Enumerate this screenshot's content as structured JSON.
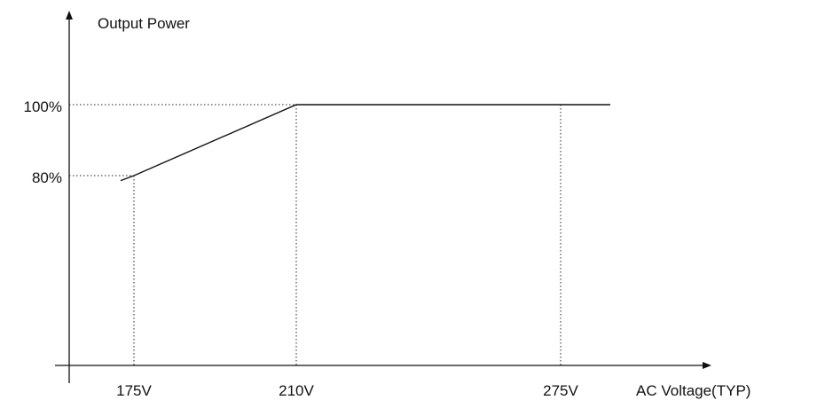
{
  "chart_data": {
    "type": "line",
    "title": "",
    "xlabel": "AC Voltage(TYP)",
    "ylabel": "Output Power",
    "x_tick_labels": [
      "175V",
      "210V",
      "275V"
    ],
    "y_tick_labels": [
      "80%",
      "100%"
    ],
    "series": [
      {
        "x": [
          170,
          175,
          210,
          275,
          285
        ],
        "y": [
          78.6,
          80,
          100,
          100,
          100
        ]
      }
    ],
    "reference_lines": [
      {
        "x": 175,
        "y": 80
      },
      {
        "x": 210,
        "y": 100
      },
      {
        "x": 275,
        "y": 100
      }
    ],
    "grid": false,
    "legend": "none"
  }
}
